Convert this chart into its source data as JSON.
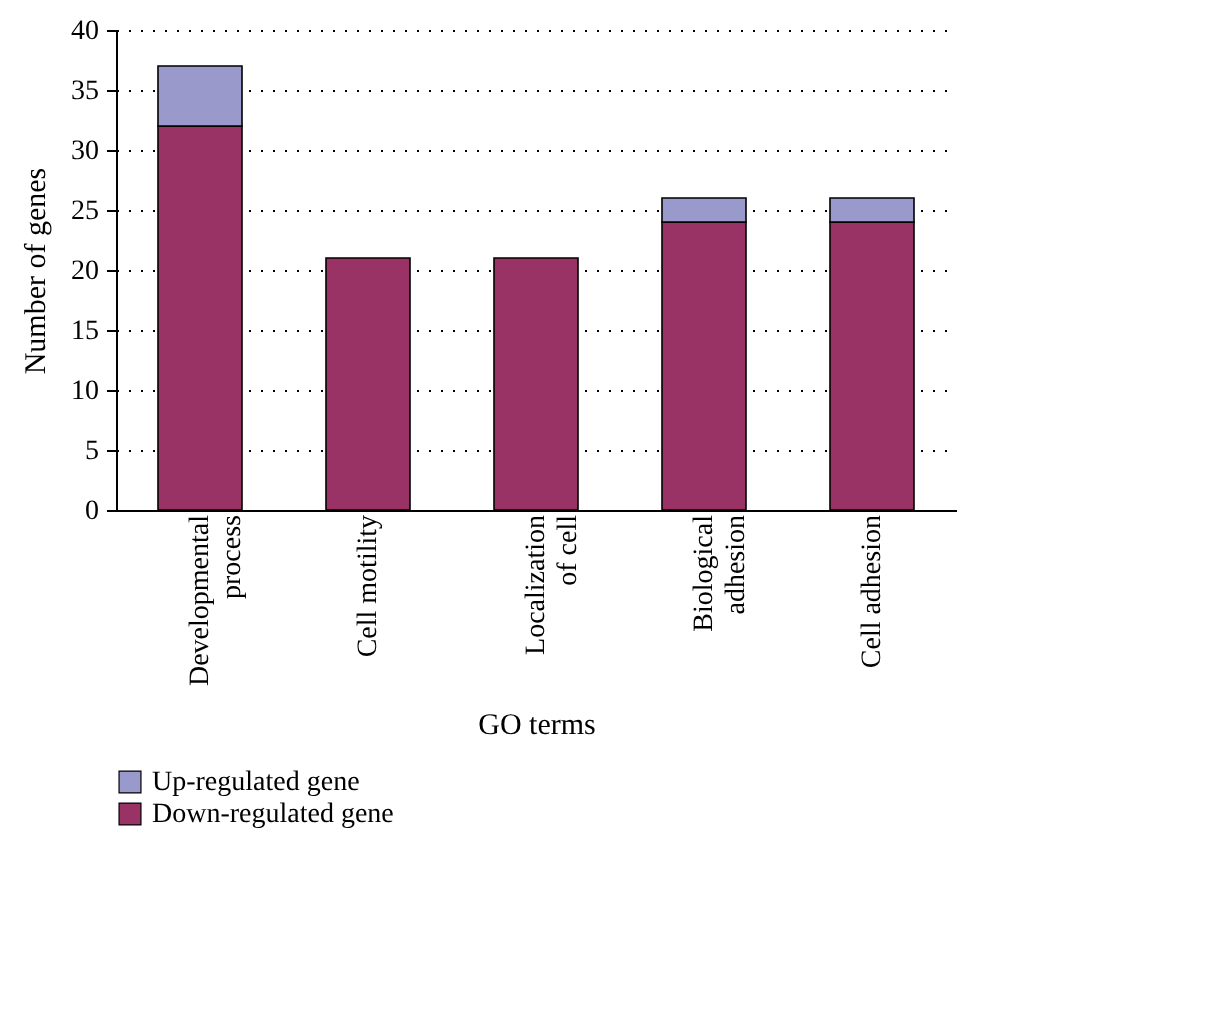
{
  "chart_data": {
    "type": "bar",
    "xlabel": "GO terms",
    "ylabel": "Number of genes",
    "categories": [
      "Developmental\nprocess",
      "Cell motility",
      "Localization\nof cell",
      "Biological\nadhesion",
      "Cell adhesion"
    ],
    "stacked": true,
    "series": [
      {
        "name": "Down-regulated gene",
        "color": "#993366",
        "values": [
          32,
          21,
          21,
          24,
          24
        ]
      },
      {
        "name": "Up-regulated gene",
        "color": "#9999cc",
        "values": [
          5,
          null,
          null,
          2,
          2
        ]
      }
    ],
    "ylim": [
      0,
      40
    ],
    "yticks": [
      0,
      5,
      10,
      15,
      20,
      25,
      30,
      35,
      40
    ],
    "grid": "y",
    "legend": "bottom left"
  }
}
